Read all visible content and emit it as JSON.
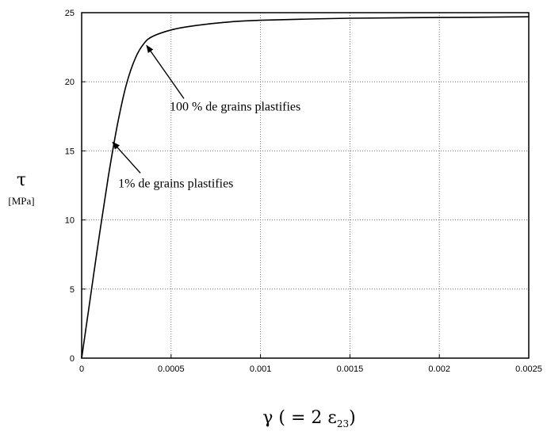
{
  "chart_data": {
    "type": "line",
    "title": "",
    "ylabel": "τ",
    "ylabel_unit": "[MPa]",
    "xlabel_main": "γ ( = 2 ε",
    "xlabel_sub": "23",
    "xlabel_close": ")",
    "xlim": [
      0,
      0.0025
    ],
    "ylim": [
      0,
      25
    ],
    "xticks": [
      0,
      0.0005,
      0.001,
      0.0015,
      0.002,
      0.0025
    ],
    "xtick_labels": [
      "0",
      "0.0005",
      "0.001",
      "0.0015",
      "0.002",
      "0.0025"
    ],
    "yticks": [
      0,
      5,
      10,
      15,
      20,
      25
    ],
    "ytick_labels": [
      "0",
      "5",
      "10",
      "15",
      "20",
      "25"
    ],
    "grid": true,
    "series": [
      {
        "x": [
          0,
          5e-05,
          0.0001,
          0.00015,
          0.0002,
          0.00025,
          0.0003,
          0.00035,
          0.0004,
          0.0005,
          0.0006,
          0.0008,
          0.001,
          0.0015,
          0.002,
          0.0025
        ],
        "y": [
          0,
          4.5,
          9.0,
          13.2,
          16.9,
          19.8,
          21.7,
          22.8,
          23.3,
          23.75,
          24.0,
          24.3,
          24.45,
          24.6,
          24.65,
          24.7
        ]
      }
    ],
    "annotations": [
      {
        "text": "100 % de grains plastifies",
        "x": 0.00035,
        "y": 22.8
      },
      {
        "text": "1% de grains plastifies",
        "x": 0.00016,
        "y": 15.8
      }
    ]
  }
}
